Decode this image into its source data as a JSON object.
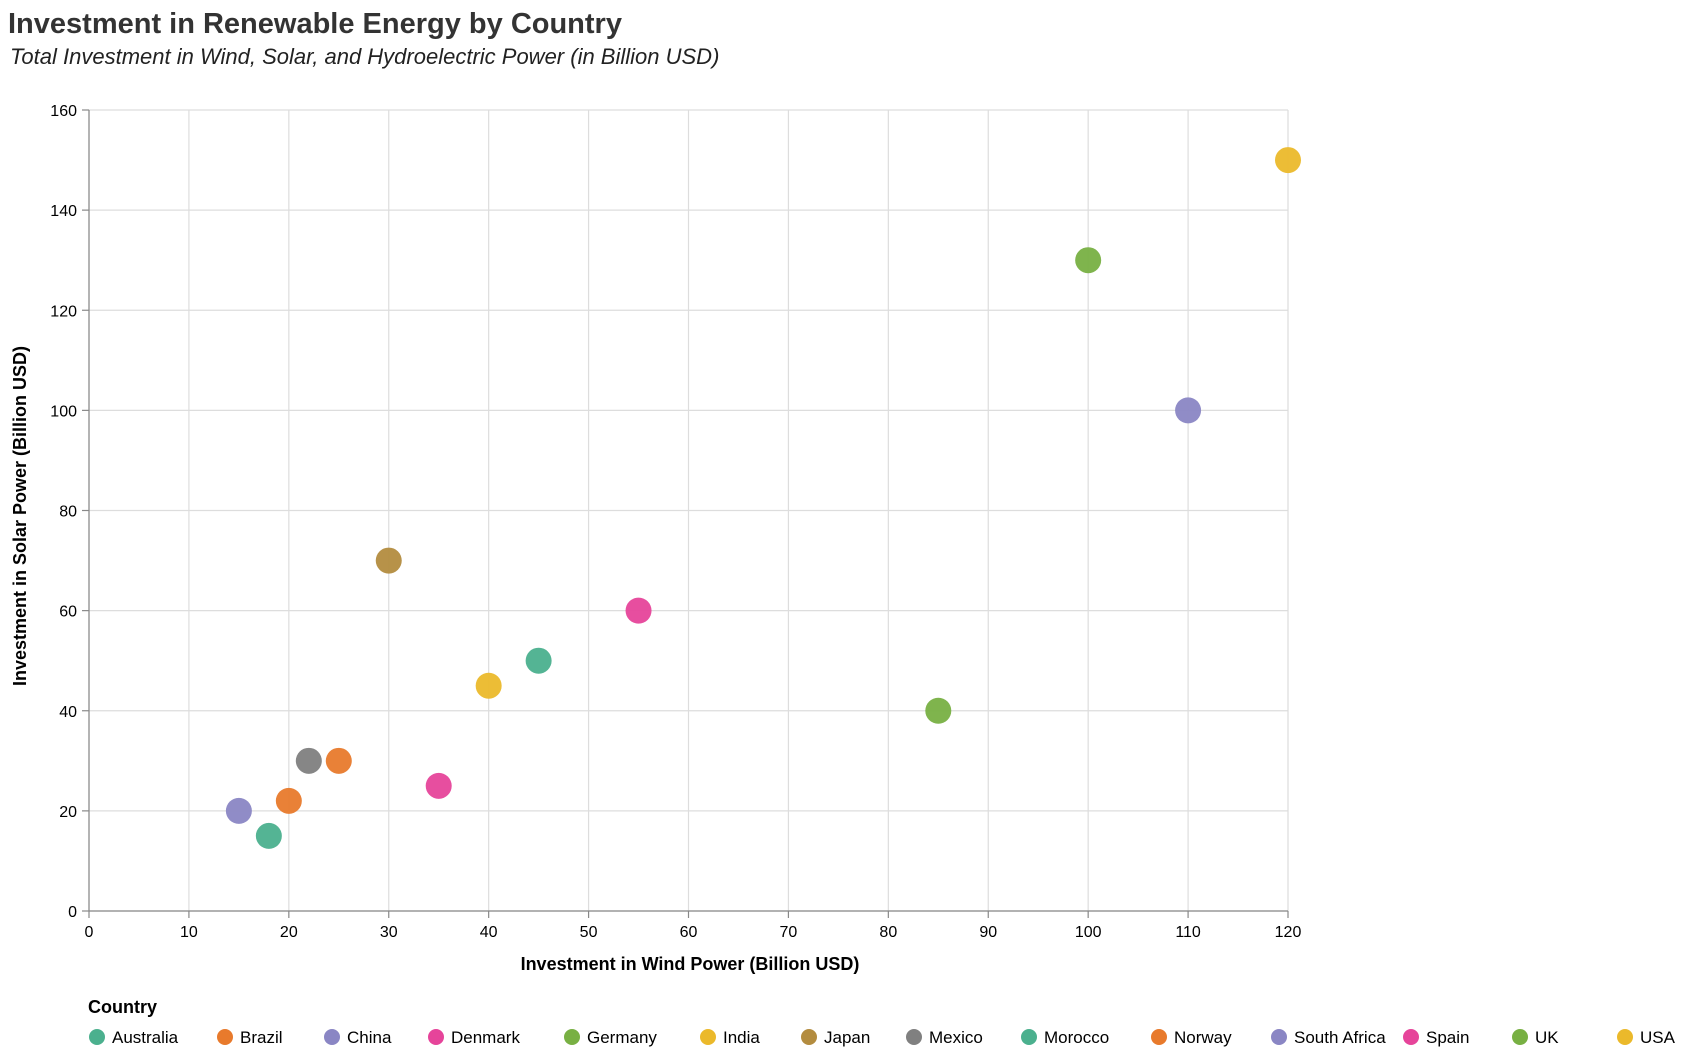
{
  "chart_data": {
    "type": "scatter",
    "title": "Investment in Renewable Energy by Country",
    "subtitle": "Total Investment in Wind, Solar, and Hydroelectric Power (in Billion USD)",
    "xlabel": "Investment in Wind Power (Billion USD)",
    "ylabel": "Investment in Solar Power (Billion USD)",
    "xlim": [
      0,
      120
    ],
    "ylim": [
      0,
      160
    ],
    "x_ticks": [
      0,
      10,
      20,
      30,
      40,
      50,
      60,
      70,
      80,
      90,
      100,
      110,
      120
    ],
    "y_ticks": [
      0,
      20,
      40,
      60,
      80,
      100,
      120,
      140,
      160
    ],
    "grid": true,
    "legend_title": "Country",
    "legend_position": "bottom",
    "legend": [
      {
        "name": "Australia",
        "color": "#4bb08e"
      },
      {
        "name": "Brazil",
        "color": "#e87a2c"
      },
      {
        "name": "China",
        "color": "#8a86c4"
      },
      {
        "name": "Denmark",
        "color": "#e6449a"
      },
      {
        "name": "Germany",
        "color": "#78b043"
      },
      {
        "name": "India",
        "color": "#ebb92b"
      },
      {
        "name": "Japan",
        "color": "#b38c3f"
      },
      {
        "name": "Mexico",
        "color": "#808080"
      },
      {
        "name": "Morocco",
        "color": "#4bb08e"
      },
      {
        "name": "Norway",
        "color": "#e87a2c"
      },
      {
        "name": "South Africa",
        "color": "#8a86c4"
      },
      {
        "name": "Spain",
        "color": "#e6449a"
      },
      {
        "name": "UK",
        "color": "#78b043"
      },
      {
        "name": "USA",
        "color": "#ebb92b"
      }
    ],
    "points": [
      {
        "country": "USA",
        "x": 120,
        "y": 150
      },
      {
        "country": "Germany",
        "x": 100,
        "y": 130
      },
      {
        "country": "China",
        "x": 110,
        "y": 100
      },
      {
        "country": "UK",
        "x": 85,
        "y": 40
      },
      {
        "country": "Japan",
        "x": 30,
        "y": 70
      },
      {
        "country": "Spain",
        "x": 55,
        "y": 60
      },
      {
        "country": "Australia",
        "x": 45,
        "y": 50
      },
      {
        "country": "India",
        "x": 40,
        "y": 45
      },
      {
        "country": "Mexico",
        "x": 22,
        "y": 30
      },
      {
        "country": "Brazil",
        "x": 25,
        "y": 30
      },
      {
        "country": "Denmark",
        "x": 35,
        "y": 25
      },
      {
        "country": "Norway",
        "x": 20,
        "y": 22
      },
      {
        "country": "South Africa",
        "x": 15,
        "y": 20
      },
      {
        "country": "Morocco",
        "x": 18,
        "y": 15
      }
    ]
  }
}
